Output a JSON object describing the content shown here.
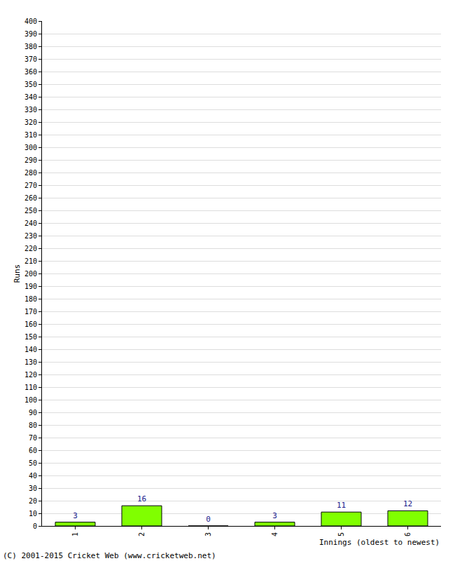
{
  "chart_data": {
    "type": "bar",
    "categories": [
      "1",
      "2",
      "3",
      "4",
      "5",
      "6"
    ],
    "values": [
      3,
      16,
      0,
      3,
      11,
      12
    ],
    "color": "#80ff00",
    "xlabel": "Innings (oldest to newest)",
    "ylabel": "Runs",
    "ylim": [
      0,
      400
    ],
    "yticks": [
      0,
      10,
      20,
      30,
      40,
      50,
      60,
      70,
      80,
      90,
      100,
      110,
      120,
      130,
      140,
      150,
      160,
      170,
      180,
      190,
      200,
      210,
      220,
      230,
      240,
      250,
      260,
      270,
      280,
      290,
      300,
      310,
      320,
      330,
      340,
      350,
      360,
      370,
      380,
      390,
      400
    ],
    "grid": true,
    "data_labels": true,
    "annotations": [
      "(C) 2001-2015 Cricket Web (www.cricketweb.net)"
    ]
  }
}
